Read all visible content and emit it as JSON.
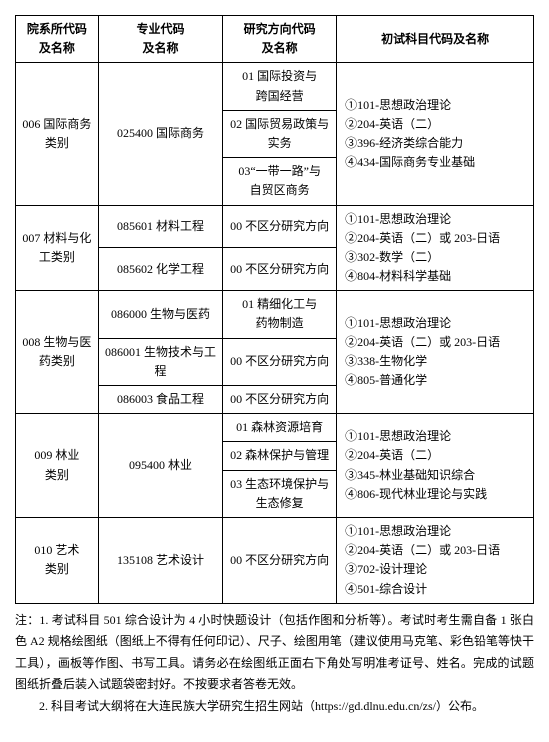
{
  "headers": {
    "col1a": "院系所代码",
    "col1b": "及名称",
    "col2a": "专业代码",
    "col2b": "及名称",
    "col3a": "研究方向代码",
    "col3b": "及名称",
    "col4": "初试科目代码及名称"
  },
  "rows": {
    "d006": {
      "dept_l1": "006 国际商务",
      "dept_l2": "类别",
      "major": "025400 国际商务",
      "dir1_l1": "01 国际投资与",
      "dir1_l2": "跨国经营",
      "dir2_l1": "02 国际贸易政策与",
      "dir2_l2": "实务",
      "dir3_l1": "03“一带一路”与",
      "dir3_l2": "自贸区商务",
      "exam1": "①101-思想政治理论",
      "exam2": "②204-英语（二）",
      "exam3": "③396-经济类综合能力",
      "exam4": "④434-国际商务专业基础"
    },
    "d007": {
      "dept_l1": "007 材料与化",
      "dept_l2": "工类别",
      "major1": "085601 材料工程",
      "major2": "085602 化学工程",
      "dir": "00 不区分研究方向",
      "exam1": "①101-思想政治理论",
      "exam2": "②204-英语（二）或 203-日语",
      "exam3": "③302-数学（二）",
      "exam4": "④804-材料科学基础"
    },
    "d008": {
      "dept_l1": "008 生物与医",
      "dept_l2": "药类别",
      "major1": "086000 生物与医药",
      "major2": "086001 生物技术与工程",
      "major3": "086003 食品工程",
      "dir1_l1": "01 精细化工与",
      "dir1_l2": "药物制造",
      "dir_other": "00 不区分研究方向",
      "exam1": "①101-思想政治理论",
      "exam2": "②204-英语（二）或 203-日语",
      "exam3": "③338-生物化学",
      "exam4": "④805-普通化学"
    },
    "d009": {
      "dept_l1": "009 林业",
      "dept_l2": "类别",
      "major": "095400 林业",
      "dir1": "01 森林资源培育",
      "dir2": "02 森林保护与管理",
      "dir3_l1": "03 生态环境保护与",
      "dir3_l2": "生态修复",
      "exam1": "①101-思想政治理论",
      "exam2": "②204-英语（二）",
      "exam3": "③345-林业基础知识综合",
      "exam4": "④806-现代林业理论与实践"
    },
    "d010": {
      "dept_l1": "010 艺术",
      "dept_l2": "类别",
      "major": "135108 艺术设计",
      "dir": "00 不区分研究方向",
      "exam1": "①101-思想政治理论",
      "exam2": "②204-英语（二）或 203-日语",
      "exam3": "③702-设计理论",
      "exam4": "④501-综合设计"
    }
  },
  "notes": {
    "n1": "注：1. 考试科目 501 综合设计为 4 小时快题设计（包括作图和分析等）。考试时考生需自备 1 张白色 A2 规格绘图纸（图纸上不得有任何印记）、尺子、绘图用笔（建议使用马克笔、彩色铅笔等快干工具），画板等作图、书写工具。请务必在绘图纸正面右下角处写明准考证号、姓名。完成的试题图纸折叠后装入试题袋密封好。不按要求者答卷无效。",
    "n2": "2. 科目考试大纲将在大连民族大学研究生招生网站（https://gd.dlnu.edu.cn/zs/）公布。"
  }
}
